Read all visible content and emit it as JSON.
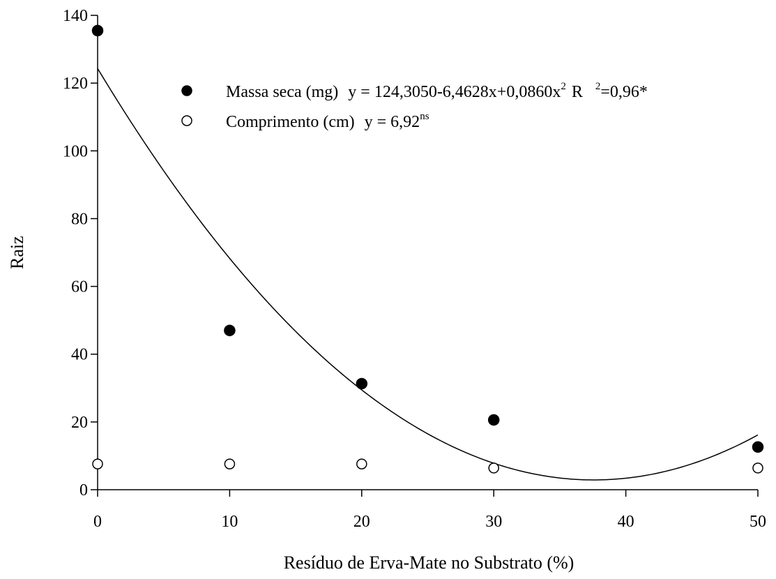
{
  "chart_data": {
    "type": "scatter",
    "xlabel": "Resíduo de Erva-Mate no Substrato (%)",
    "ylabel": "Raiz",
    "xlim": [
      0,
      50
    ],
    "ylim": [
      0,
      140
    ],
    "xticks": [
      "0",
      "10",
      "20",
      "30",
      "40",
      "50"
    ],
    "yticks": [
      "0",
      "20",
      "40",
      "60",
      "80",
      "100",
      "120",
      "140"
    ],
    "grid": false,
    "legend_position": "top-center",
    "series": [
      {
        "name": "Massa seca (mg)",
        "marker": "filled-circle",
        "x": [
          0,
          10,
          20,
          30,
          50
        ],
        "y": [
          135.5,
          47.0,
          31.3,
          20.6,
          12.6
        ],
        "legend_equation": "y = 124,3050-6,4628x+0,0860x",
        "legend_exponent": "2",
        "legend_r": "R",
        "legend_r_exponent": "2",
        "legend_r_value": "=0,96*",
        "fit": {
          "type": "quadratic",
          "coefficients": [
            124.305,
            -6.4628,
            0.086
          ],
          "x_range": [
            0,
            50
          ]
        }
      },
      {
        "name": "Comprimento (cm)",
        "marker": "open-circle",
        "x": [
          0,
          10,
          20,
          30,
          50
        ],
        "y": [
          7.6,
          7.6,
          7.6,
          6.4,
          6.4
        ],
        "legend_equation": "y = 6,92",
        "legend_exponent": "ns"
      }
    ]
  }
}
